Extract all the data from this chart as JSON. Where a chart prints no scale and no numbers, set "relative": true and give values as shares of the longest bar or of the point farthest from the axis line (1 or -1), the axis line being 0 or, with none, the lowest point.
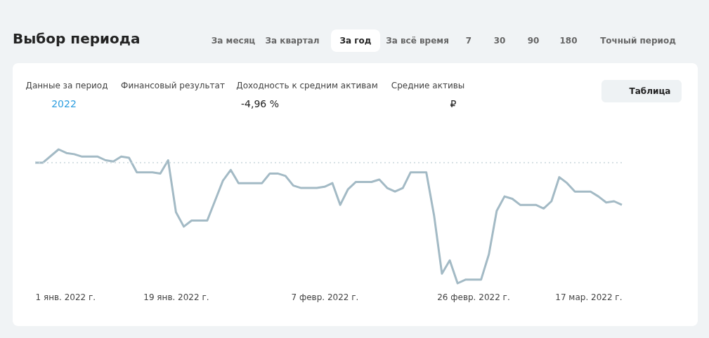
{
  "chart_data": {
    "type": "line",
    "title": "Выбор периода",
    "relative": true,
    "x": [
      "2022-01-01",
      "2022-01-02",
      "2022-01-04",
      "2022-01-05",
      "2022-01-06",
      "2022-01-07",
      "2022-01-09",
      "2022-01-10",
      "2022-01-11",
      "2022-01-12",
      "2022-01-13",
      "2022-01-14",
      "2022-01-16",
      "2022-01-17",
      "2022-01-18",
      "2022-01-19",
      "2022-01-20",
      "2022-01-21",
      "2022-01-23",
      "2022-01-25",
      "2022-01-26",
      "2022-01-27",
      "2022-01-30",
      "2022-01-31",
      "2022-02-01",
      "2022-02-02",
      "2022-02-03",
      "2022-02-04",
      "2022-02-06",
      "2022-02-07",
      "2022-02-08",
      "2022-02-09",
      "2022-02-10",
      "2022-02-11",
      "2022-02-13",
      "2022-02-14",
      "2022-02-15",
      "2022-02-16",
      "2022-02-17",
      "2022-02-18",
      "2022-02-20",
      "2022-02-21",
      "2022-02-22",
      "2022-02-23",
      "2022-02-24",
      "2022-02-25",
      "2022-02-27",
      "2022-02-28",
      "2022-03-01",
      "2022-03-02",
      "2022-03-03",
      "2022-03-04",
      "2022-03-06",
      "2022-03-07",
      "2022-03-08",
      "2022-03-09",
      "2022-03-10",
      "2022-03-11",
      "2022-03-13",
      "2022-03-14",
      "2022-03-15",
      "2022-03-16",
      "2022-03-17"
    ],
    "series": [
      {
        "color": "#a3bac5",
        "values": [
          0,
          0,
          0.11,
          0.08,
          0.07,
          0.05,
          0.05,
          0.02,
          0.01,
          0.05,
          0.04,
          -0.08,
          -0.08,
          -0.09,
          0.02,
          -0.41,
          -0.53,
          -0.48,
          -0.48,
          -0.15,
          -0.06,
          -0.17,
          -0.17,
          -0.09,
          -0.09,
          -0.11,
          -0.19,
          -0.21,
          -0.21,
          -0.2,
          -0.17,
          -0.35,
          -0.22,
          -0.16,
          -0.16,
          -0.14,
          -0.21,
          -0.24,
          -0.21,
          -0.08,
          -0.08,
          -0.44,
          -0.92,
          -0.81,
          -1,
          -0.97,
          -0.97,
          -0.76,
          -0.4,
          -0.28,
          -0.3,
          -0.35,
          -0.35,
          -0.38,
          -0.32,
          -0.12,
          -0.17,
          -0.24,
          -0.24,
          -0.28,
          -0.33,
          -0.32,
          -0.35
        ]
      }
    ],
    "xlim": [
      "2022-01-01",
      "2022-03-17"
    ],
    "xticks": [
      {
        "value": "2022-01-01",
        "label": "1 янв. 2022 г."
      },
      {
        "value": "2022-01-19",
        "label": "19 янв. 2022 г."
      },
      {
        "value": "2022-02-07",
        "label": "7 февр. 2022 г."
      },
      {
        "value": "2022-02-26",
        "label": "26 февр. 2022 г."
      },
      {
        "value": "2022-03-17",
        "label": "17 мар. 2022 г."
      }
    ],
    "ref_lines": [
      {
        "axis": "y",
        "value": 0,
        "color": "#c9d6dc",
        "line_style": "dotted"
      }
    ],
    "grid": false,
    "annotations": [
      "За месяц",
      "За квартал",
      "За год",
      "За всё время",
      "7",
      "30",
      "90",
      "180",
      "Точный период",
      "Данные за период",
      "2022",
      "Финансовый результат",
      "Доходность к средним активам",
      "-4,96 %",
      "Средние активы",
      "₽",
      "Таблица"
    ]
  }
}
